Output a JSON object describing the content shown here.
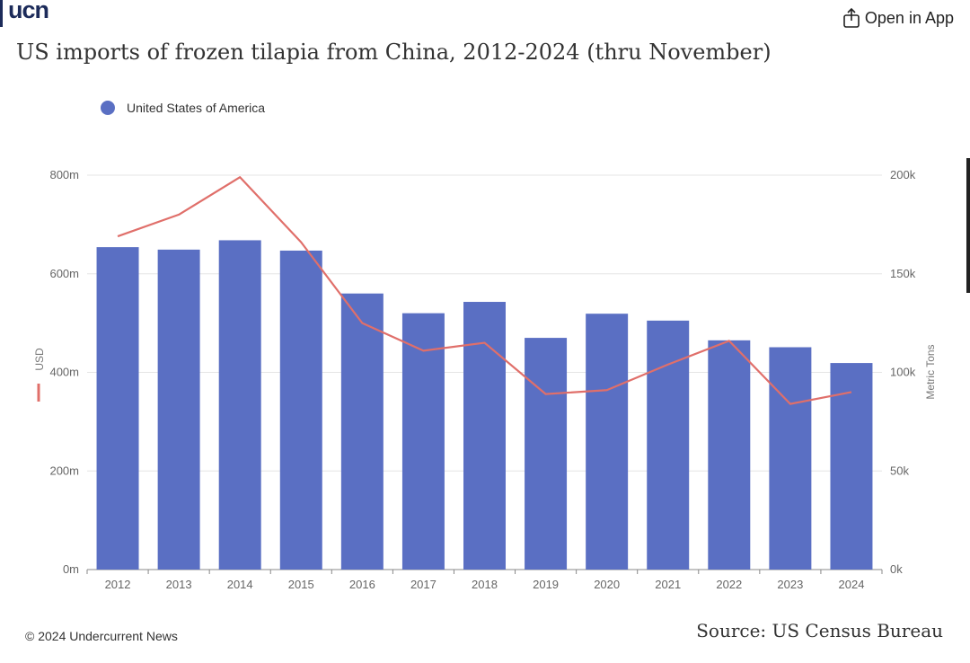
{
  "header": {
    "logo_text": "ucn",
    "open_app_label": "Open in App"
  },
  "colors": {
    "bar": "#5a6fc3",
    "line": "#e06f6a",
    "grid": "#e6e6e6",
    "logo": "#1c2b5a"
  },
  "chart_data": {
    "type": "bar",
    "title": "US imports of frozen tilapia from China, 2012-2024 (thru November)",
    "categories": [
      "2012",
      "2013",
      "2014",
      "2015",
      "2016",
      "2017",
      "2018",
      "2019",
      "2020",
      "2021",
      "2022",
      "2023",
      "2024"
    ],
    "series": [
      {
        "name": "United States of America",
        "axis": "left",
        "type": "bar",
        "values": [
          654,
          649,
          668,
          647,
          560,
          520,
          543,
          470,
          519,
          505,
          465,
          451,
          419
        ]
      },
      {
        "axis": "right",
        "type": "line",
        "values": [
          169,
          180,
          199,
          166,
          125,
          111,
          115,
          89,
          91,
          104,
          116,
          84,
          90
        ]
      }
    ],
    "left_axis": {
      "label": "USD",
      "ticks": [
        "0m",
        "200m",
        "400m",
        "600m",
        "800m"
      ],
      "range": [
        0,
        800
      ],
      "unit": "millions USD"
    },
    "right_axis": {
      "label": "Metric Tons",
      "ticks": [
        "0k",
        "50k",
        "100k",
        "150k",
        "200k"
      ],
      "range": [
        0,
        200
      ],
      "unit": "thousand metric tons"
    },
    "grid": true,
    "legend_position": "top-left"
  },
  "footer": {
    "copyright": "© 2024 Undercurrent News",
    "source": "Source: US Census Bureau"
  }
}
